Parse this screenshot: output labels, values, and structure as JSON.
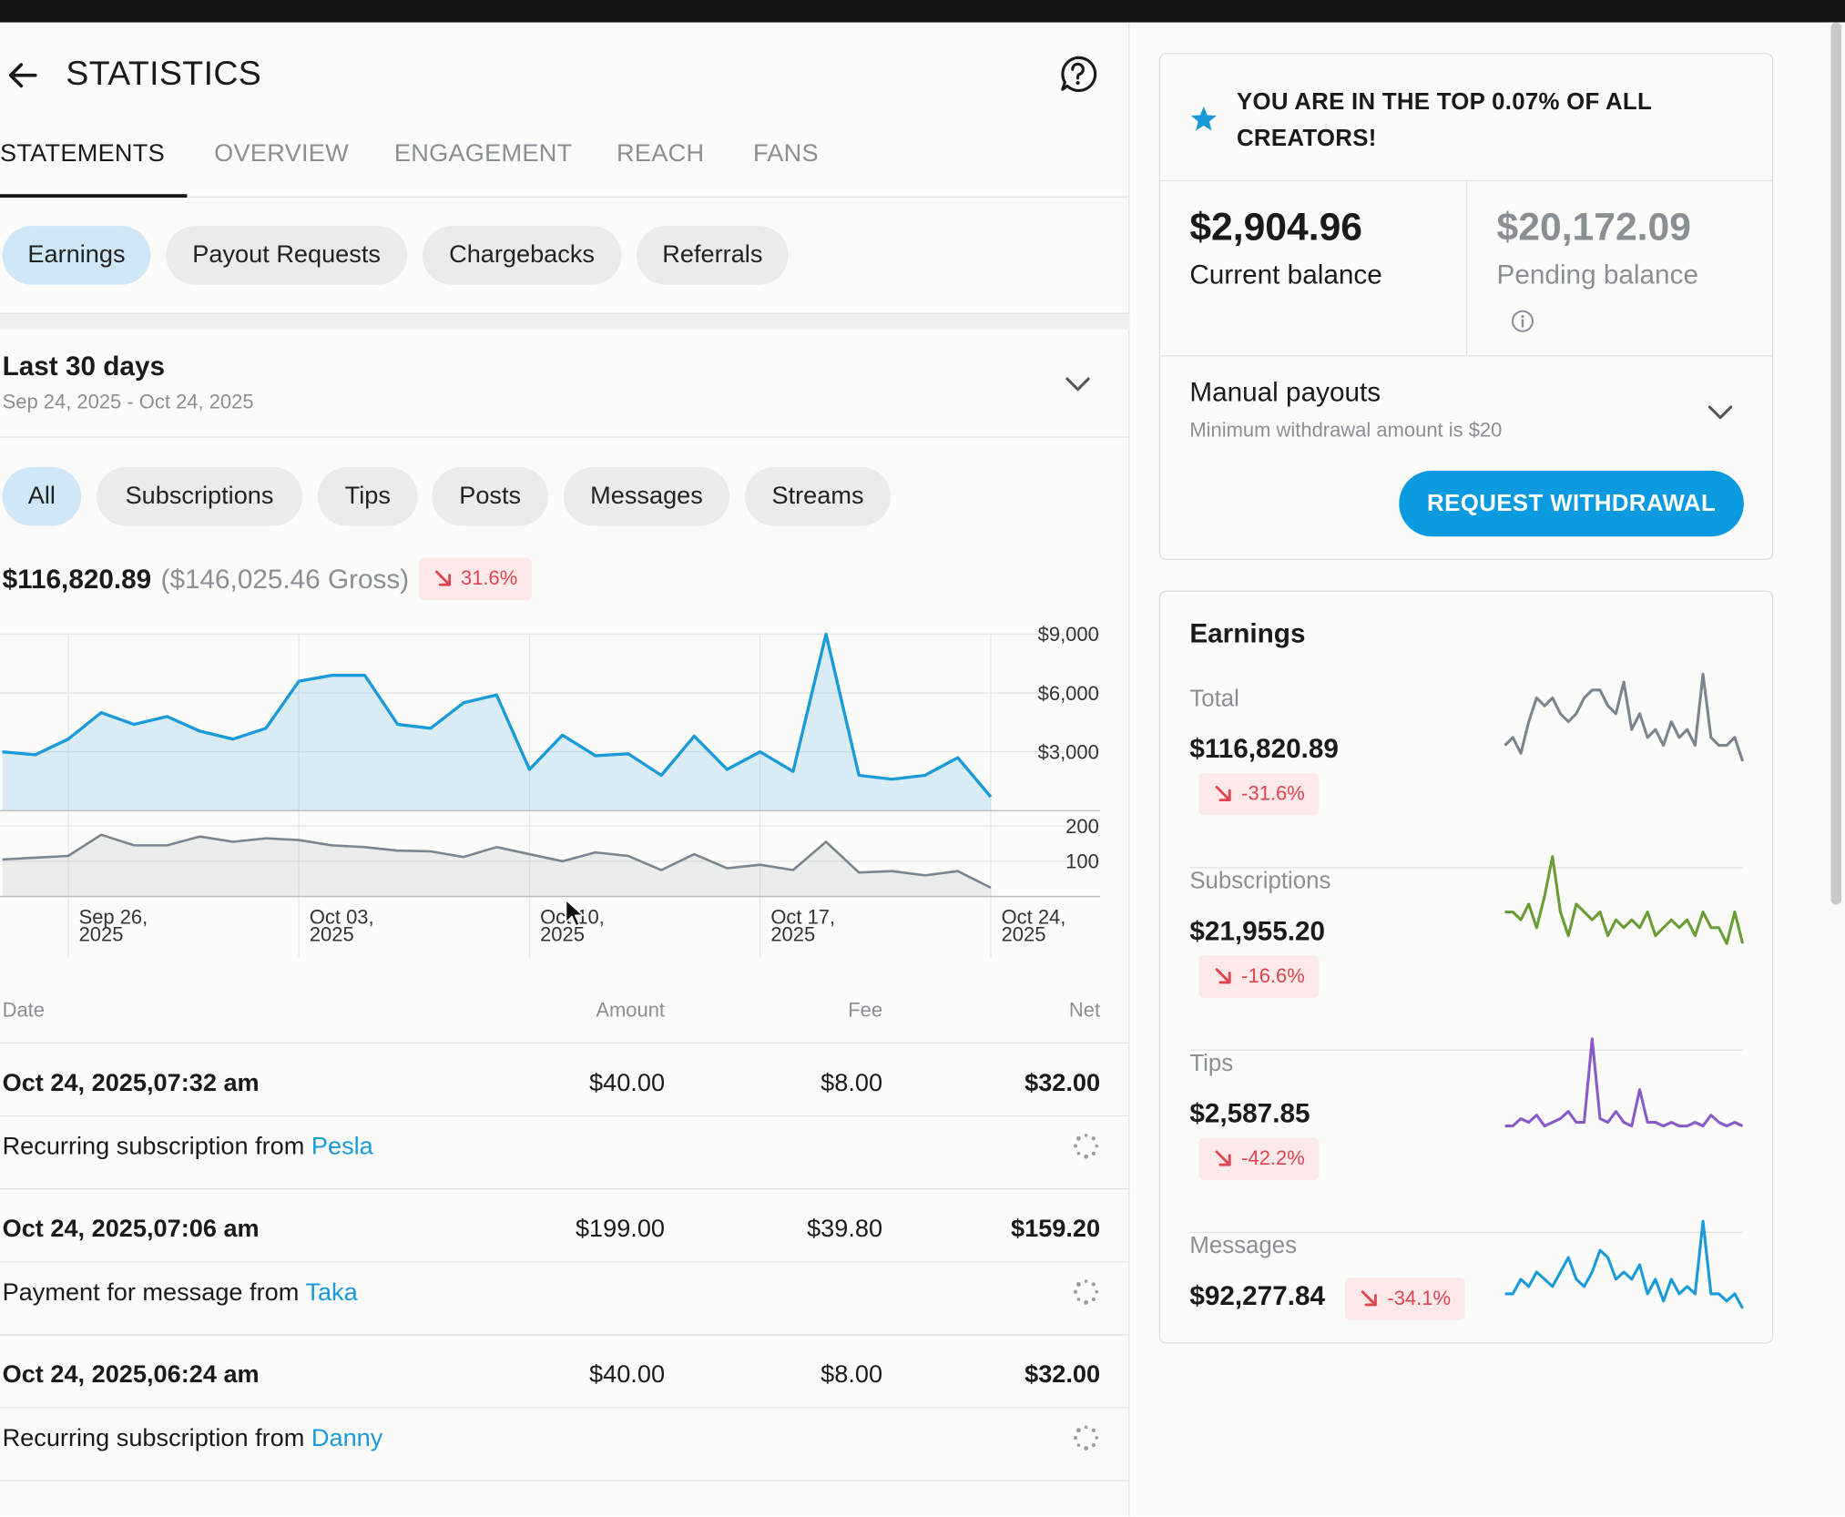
{
  "header": {
    "title": "STATISTICS",
    "back_icon": "arrow-left-icon",
    "help_icon": "help-circle-icon"
  },
  "tabs": [
    "STATEMENTS",
    "OVERVIEW",
    "ENGAGEMENT",
    "REACH",
    "FANS"
  ],
  "active_tab": "STATEMENTS",
  "statement_types": [
    "Earnings",
    "Payout Requests",
    "Chargebacks",
    "Referrals"
  ],
  "active_statement_type": "Earnings",
  "range": {
    "title": "Last 30 days",
    "dates": "Sep 24, 2025 - Oct 24, 2025"
  },
  "categories": [
    "All",
    "Subscriptions",
    "Tips",
    "Posts",
    "Messages",
    "Streams"
  ],
  "active_category": "All",
  "summary": {
    "net": "$116,820.89",
    "gross": "($146,025.46 Gross)",
    "change": "31.6%"
  },
  "chart_data": {
    "type": "area",
    "x": [
      "Sep 24",
      "Sep 25",
      "Sep 26",
      "Sep 27",
      "Sep 28",
      "Sep 29",
      "Sep 30",
      "Oct 01",
      "Oct 02",
      "Oct 03",
      "Oct 04",
      "Oct 05",
      "Oct 06",
      "Oct 07",
      "Oct 08",
      "Oct 09",
      "Oct 10",
      "Oct 11",
      "Oct 12",
      "Oct 13",
      "Oct 14",
      "Oct 15",
      "Oct 16",
      "Oct 17",
      "Oct 18",
      "Oct 19",
      "Oct 20",
      "Oct 21",
      "Oct 22",
      "Oct 23",
      "Oct 24"
    ],
    "x_ticks": [
      {
        "x": "Sep 26",
        "line1": "Sep 26,",
        "line2": "2025"
      },
      {
        "x": "Oct 03",
        "line1": "Oct 03,",
        "line2": "2025"
      },
      {
        "x": "Oct 10",
        "line1": "Oct 10,",
        "line2": "2025"
      },
      {
        "x": "Oct 17",
        "line1": "Oct 17,",
        "line2": "2025"
      },
      {
        "x": "Oct 24",
        "line1": "Oct 24,",
        "line2": "2025"
      }
    ],
    "series": [
      {
        "values": [
          3000,
          2850,
          3650,
          5000,
          4400,
          4800,
          4050,
          3650,
          4200,
          6600,
          6900,
          6900,
          4400,
          4200,
          5500,
          5900,
          2100,
          3850,
          2800,
          2900,
          1800,
          3800,
          2100,
          3000,
          2000,
          9000,
          1800,
          1600,
          1800,
          2700,
          700
        ],
        "color": "#1a9ad9",
        "ylim": [
          0,
          9000
        ],
        "yticks": [
          "$9,000",
          "$6,000",
          "$3,000"
        ],
        "ytick_values": [
          9000,
          6000,
          3000
        ]
      },
      {
        "values": [
          105,
          110,
          115,
          175,
          145,
          145,
          170,
          155,
          165,
          160,
          145,
          140,
          130,
          128,
          112,
          140,
          120,
          100,
          125,
          115,
          75,
          120,
          80,
          90,
          75,
          155,
          68,
          72,
          60,
          72,
          25
        ],
        "color": "#7b858e",
        "ylim": [
          0,
          200
        ],
        "yticks": [
          "200",
          "100"
        ],
        "ytick_values": [
          200,
          100
        ]
      }
    ]
  },
  "table": {
    "headers": {
      "date": "Date",
      "amount": "Amount",
      "fee": "Fee",
      "net": "Net"
    },
    "rows": [
      {
        "date": "Oct 24, 2025,07:32 am",
        "amount": "$40.00",
        "fee": "$8.00",
        "net": "$32.00",
        "desc_prefix": "Recurring subscription from",
        "user": "Pesla"
      },
      {
        "date": "Oct 24, 2025,07:06 am",
        "amount": "$199.00",
        "fee": "$39.80",
        "net": "$159.20",
        "desc_prefix": "Payment for message from",
        "user": "Taka"
      },
      {
        "date": "Oct 24, 2025,06:24 am",
        "amount": "$40.00",
        "fee": "$8.00",
        "net": "$32.00",
        "desc_prefix": "Recurring subscription from",
        "user": "Danny"
      }
    ]
  },
  "sidebar": {
    "top_banner": "YOU ARE IN THE TOP 0.07% OF ALL CREATORS!",
    "current_balance": {
      "amount": "$2,904.96",
      "label": "Current balance"
    },
    "pending_balance": {
      "amount": "$20,172.09",
      "label": "Pending balance"
    },
    "payouts": {
      "title": "Manual payouts",
      "subtitle": "Minimum withdrawal amount is $20",
      "button": "REQUEST WITHDRAWAL"
    },
    "earnings": {
      "title": "Earnings",
      "items": [
        {
          "label": "Total",
          "amount": "$116,820.89",
          "change": "-31.6%",
          "color": "#7b858e",
          "spark": [
            5,
            6,
            4,
            8,
            11,
            10,
            11,
            9,
            8,
            9,
            11,
            12,
            12,
            10,
            9,
            13,
            7,
            9,
            6,
            7,
            5,
            8,
            6,
            7,
            5,
            14,
            6,
            5,
            5,
            6,
            3
          ]
        },
        {
          "label": "Subscriptions",
          "amount": "$21,955.20",
          "change": "-16.6%",
          "color": "#6a9d36",
          "spark": [
            6,
            6,
            5,
            7,
            4,
            8,
            13,
            6,
            3,
            7,
            6,
            5,
            6,
            3,
            5,
            4,
            5,
            4,
            6,
            3,
            4,
            5,
            4,
            5,
            3,
            6,
            4,
            4,
            2,
            6,
            2
          ]
        },
        {
          "label": "Tips",
          "amount": "$2,587.85",
          "change": "-42.2%",
          "color": "#8a5bc8",
          "spark": [
            2,
            2,
            4,
            3,
            5,
            2,
            3,
            4,
            6,
            3,
            3,
            26,
            4,
            3,
            6,
            3,
            2,
            12,
            3,
            3,
            2,
            3,
            2,
            2,
            3,
            2,
            5,
            3,
            2,
            3,
            2
          ]
        },
        {
          "label": "Messages",
          "amount": "$92,277.84",
          "change": "-34.1%",
          "color": "#1a9ad9",
          "spark": [
            3,
            3,
            5,
            4,
            6,
            5,
            4,
            6,
            8,
            5,
            4,
            6,
            9,
            8,
            5,
            6,
            5,
            7,
            3,
            5,
            2,
            5,
            3,
            4,
            3,
            13,
            3,
            3,
            2,
            3,
            1
          ]
        }
      ]
    }
  }
}
